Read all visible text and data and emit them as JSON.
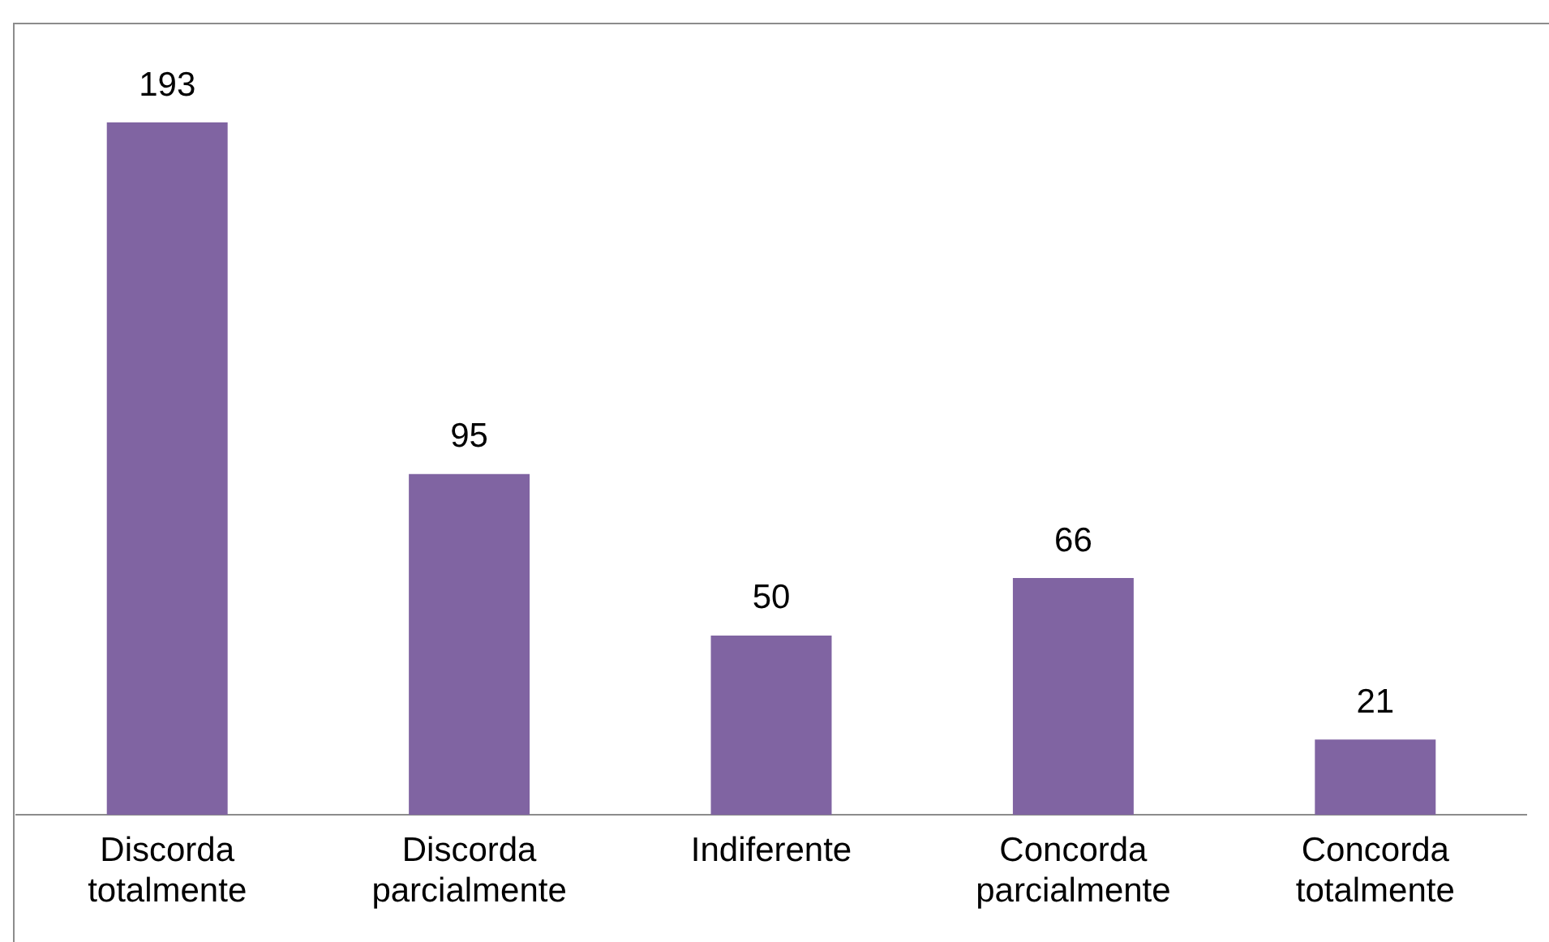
{
  "chart_data": {
    "type": "bar",
    "categories": [
      "Discorda totalmente",
      "Discorda parcialmente",
      "Indiferente",
      "Concorda parcialmente",
      "Concorda totalmente"
    ],
    "values": [
      193,
      95,
      50,
      66,
      21
    ],
    "color": "#8064a2",
    "data_labels": true,
    "grid": false,
    "legend": false
  }
}
